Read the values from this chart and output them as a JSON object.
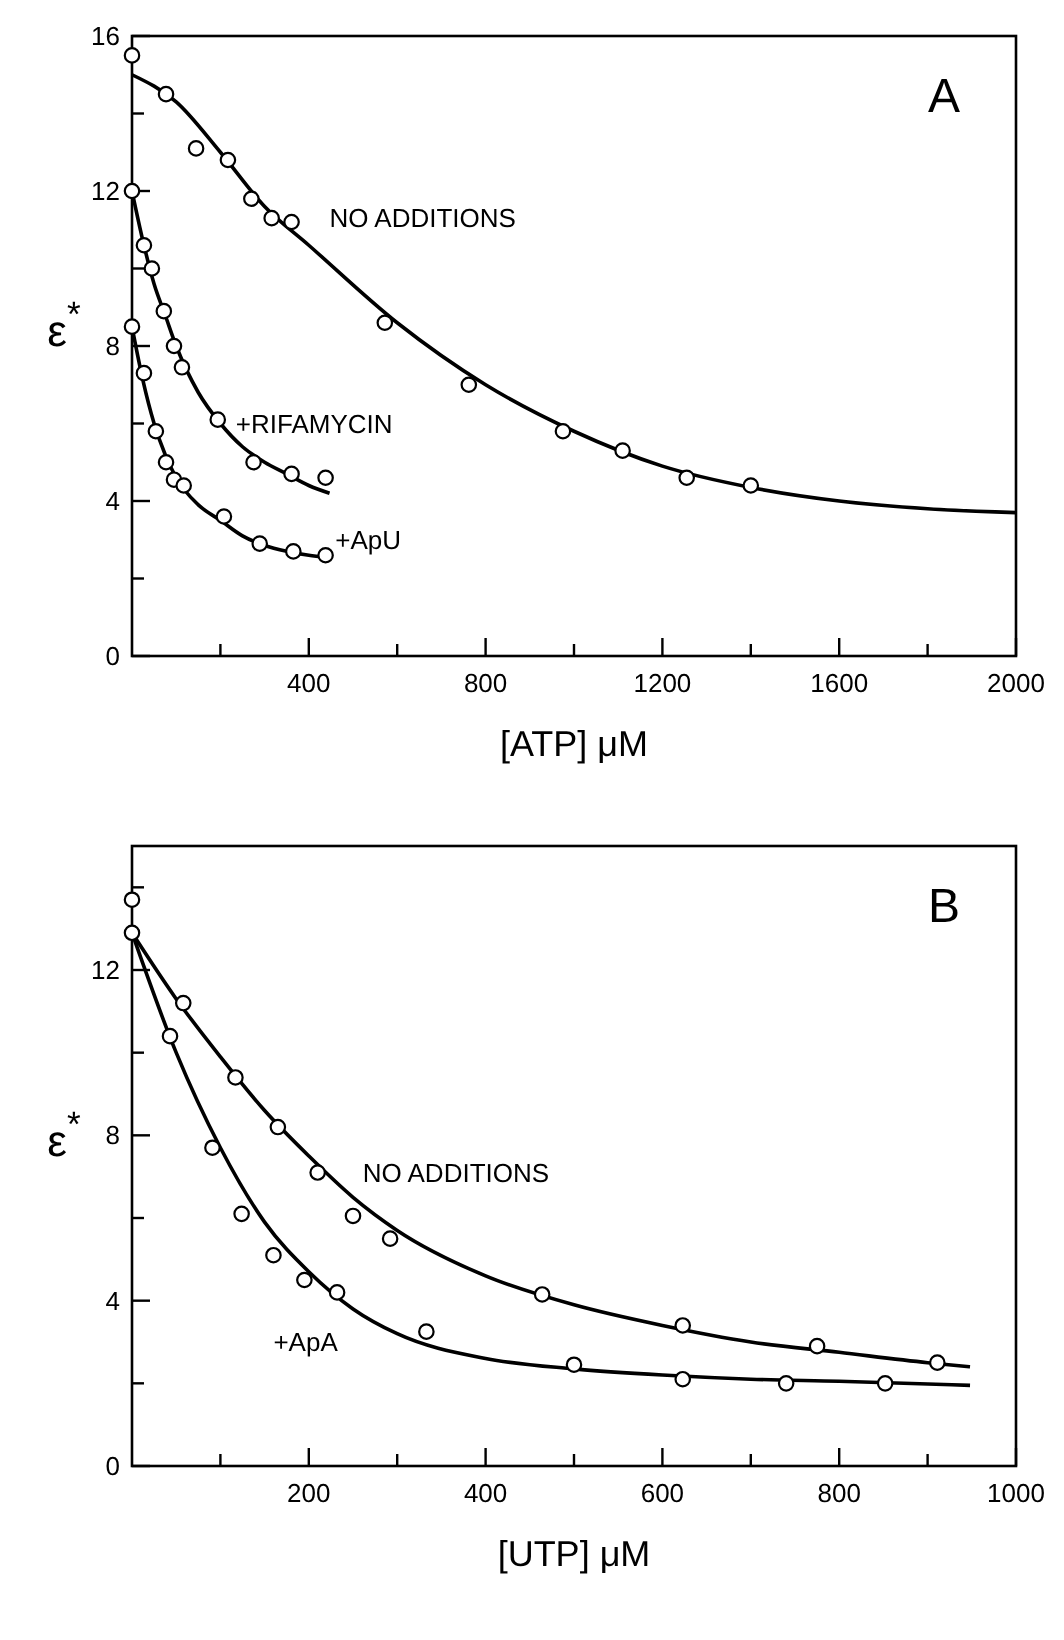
{
  "chart_data": [
    {
      "type": "line",
      "xlabel": "[ATP]  μM",
      "ylabel": "ε$^{*}$",
      "xlim": [
        0,
        2000
      ],
      "ylim": [
        0,
        16
      ],
      "xticks": [
        {
          "value": 200,
          "label": null
        },
        400,
        {
          "value": 600,
          "label": null
        },
        800,
        {
          "value": 1000,
          "label": null
        },
        1200,
        {
          "value": 1400,
          "label": null
        },
        1600,
        {
          "value": 1800,
          "label": null
        },
        2000
      ],
      "yticks": [
        0,
        {
          "value": 2,
          "label": null
        },
        4,
        {
          "value": 6,
          "label": null
        },
        8,
        {
          "value": 10,
          "label": null
        },
        12,
        {
          "value": 14,
          "label": null
        },
        16
      ],
      "grid": false,
      "annotations": [
        "A",
        "NO ADDITIONS",
        "+RIFAMYCIN",
        "+ApU"
      ],
      "series": [
        {
          "color": "#000000",
          "marker": "none",
          "line_style": "solid",
          "x": [
            0,
            100,
            200,
            300,
            400,
            600,
            800,
            1000,
            1200,
            1400,
            1600,
            1800,
            2000
          ],
          "values": [
            15.0,
            14.3,
            13.0,
            11.6,
            10.6,
            8.6,
            7.0,
            5.8,
            4.9,
            4.35,
            4.0,
            3.8,
            3.7
          ]
        },
        {
          "type": "scatter",
          "color": "#000000",
          "marker": "circle",
          "x": [
            0,
            77,
            145,
            217,
            270,
            316,
            361,
            572,
            762,
            975,
            1110,
            1255,
            1400
          ],
          "values": [
            15.5,
            14.5,
            13.1,
            12.8,
            11.8,
            11.3,
            11.2,
            8.6,
            7.0,
            5.8,
            5.3,
            4.6,
            4.4
          ]
        },
        {
          "color": "#000000",
          "marker": "none",
          "line_style": "solid",
          "x": [
            0,
            25,
            50,
            75,
            100,
            150,
            200,
            250,
            300,
            350,
            400,
            447
          ],
          "values": [
            12.0,
            10.7,
            9.6,
            8.8,
            8.0,
            6.8,
            6.0,
            5.4,
            5.0,
            4.7,
            4.4,
            4.2
          ]
        },
        {
          "type": "scatter",
          "color": "#000000",
          "marker": "circle",
          "x": [
            0,
            27,
            45,
            72,
            95,
            113,
            194,
            275,
            361,
            438
          ],
          "values": [
            12.0,
            10.6,
            10.0,
            8.9,
            8.0,
            7.45,
            6.1,
            5.0,
            4.7,
            4.6
          ]
        },
        {
          "color": "#000000",
          "marker": "none",
          "line_style": "solid",
          "x": [
            0,
            25,
            50,
            75,
            100,
            150,
            200,
            250,
            300,
            350,
            400,
            440
          ],
          "values": [
            8.5,
            7.1,
            6.0,
            5.2,
            4.6,
            3.9,
            3.5,
            3.1,
            2.85,
            2.7,
            2.6,
            2.55
          ]
        },
        {
          "type": "scatter",
          "color": "#000000",
          "marker": "circle",
          "x": [
            0,
            27,
            54,
            77,
            95,
            117,
            208,
            289,
            365,
            438
          ],
          "values": [
            8.5,
            7.3,
            5.8,
            5.0,
            4.55,
            4.4,
            3.6,
            2.9,
            2.7,
            2.6
          ]
        }
      ]
    },
    {
      "type": "line",
      "xlabel": "[UTP]  μM",
      "ylabel": "ε$^{*}$",
      "xlim": [
        0,
        1000
      ],
      "ylim": [
        0,
        15
      ],
      "xticks": [
        {
          "value": 100,
          "label": null
        },
        200,
        {
          "value": 300,
          "label": null
        },
        400,
        {
          "value": 500,
          "label": null
        },
        600,
        {
          "value": 700,
          "label": null
        },
        800,
        {
          "value": 900,
          "label": null
        },
        1000
      ],
      "yticks": [
        0,
        {
          "value": 2,
          "label": null
        },
        4,
        {
          "value": 6,
          "label": null
        },
        8,
        {
          "value": 10,
          "label": null
        },
        12,
        {
          "value": 14,
          "label": null
        }
      ],
      "grid": false,
      "annotations": [
        "B",
        "NO ADDITIONS",
        "+ApA"
      ],
      "series": [
        {
          "color": "#000000",
          "marker": "none",
          "line_style": "solid",
          "x": [
            0,
            50,
            100,
            150,
            200,
            250,
            300,
            400,
            500,
            600,
            700,
            800,
            900,
            948
          ],
          "values": [
            12.9,
            11.3,
            9.9,
            8.6,
            7.5,
            6.5,
            5.7,
            4.6,
            3.9,
            3.4,
            3.0,
            2.75,
            2.5,
            2.4
          ]
        },
        {
          "type": "scatter",
          "color": "#000000",
          "marker": "circle",
          "x": [
            0,
            58,
            117,
            165,
            210,
            250,
            292,
            464,
            623,
            775,
            911
          ],
          "values": [
            13.7,
            11.2,
            9.4,
            8.2,
            7.1,
            6.05,
            5.5,
            4.15,
            3.4,
            2.9,
            2.5
          ]
        },
        {
          "color": "#000000",
          "marker": "none",
          "line_style": "solid",
          "x": [
            0,
            50,
            100,
            150,
            200,
            250,
            300,
            400,
            500,
            600,
            700,
            800,
            948
          ],
          "values": [
            12.9,
            10.0,
            7.7,
            5.9,
            4.7,
            3.8,
            3.2,
            2.6,
            2.35,
            2.2,
            2.1,
            2.05,
            1.95
          ]
        },
        {
          "type": "scatter",
          "color": "#000000",
          "marker": "circle",
          "x": [
            0,
            43,
            91,
            124,
            160,
            195,
            232,
            333,
            500,
            623,
            740,
            852
          ],
          "values": [
            12.9,
            10.4,
            7.7,
            6.1,
            5.1,
            4.5,
            4.2,
            3.25,
            2.45,
            2.1,
            2.0,
            2.0
          ]
        }
      ]
    }
  ]
}
